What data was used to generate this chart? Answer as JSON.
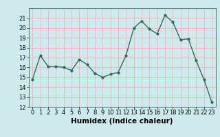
{
  "x": [
    0,
    1,
    2,
    3,
    4,
    5,
    6,
    7,
    8,
    9,
    10,
    11,
    12,
    13,
    14,
    15,
    16,
    17,
    18,
    19,
    20,
    21,
    22,
    23
  ],
  "y": [
    14.8,
    17.2,
    16.1,
    16.1,
    16.0,
    15.7,
    16.8,
    16.3,
    15.4,
    15.0,
    15.3,
    15.5,
    17.2,
    20.0,
    20.7,
    19.9,
    19.4,
    21.3,
    20.6,
    18.8,
    18.9,
    16.7,
    14.8,
    12.5
  ],
  "line_color": "#2e6b5e",
  "marker": "o",
  "markersize": 2,
  "linewidth": 1.0,
  "xlabel": "Humidex (Indice chaleur)",
  "ylim": [
    12,
    22
  ],
  "xlim": [
    -0.5,
    23.5
  ],
  "yticks": [
    12,
    13,
    14,
    15,
    16,
    17,
    18,
    19,
    20,
    21
  ],
  "xticks": [
    0,
    1,
    2,
    3,
    4,
    5,
    6,
    7,
    8,
    9,
    10,
    11,
    12,
    13,
    14,
    15,
    16,
    17,
    18,
    19,
    20,
    21,
    22,
    23
  ],
  "bg_color": "#ceeaed",
  "grid_color": "#f0b8b8",
  "tick_fontsize": 6,
  "xlabel_fontsize": 7.5
}
